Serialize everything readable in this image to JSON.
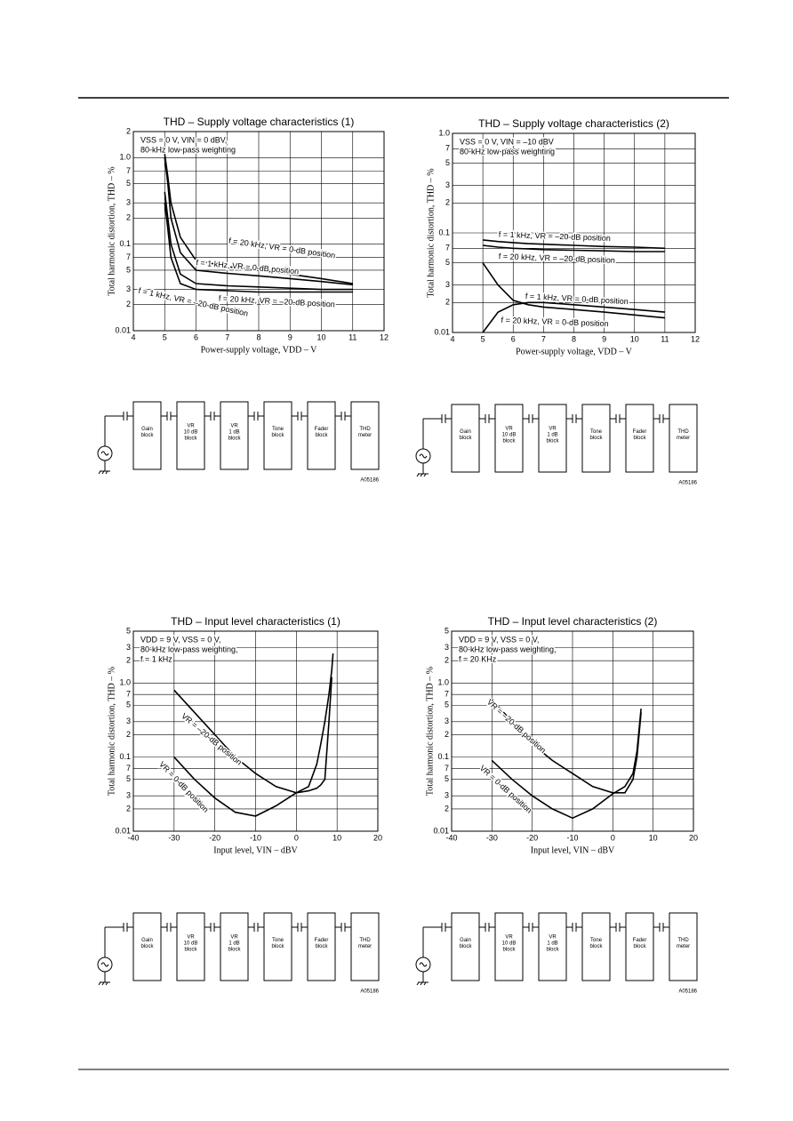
{
  "chart_data": [
    {
      "type": "line",
      "title": "THD – Supply voltage characteristics (1)",
      "x_label": "Power-supply voltage, VDD – V",
      "y_label": "Total harmonic distortion, THD – %",
      "annotation": [
        "VSS = 0 V, VIN = 0 dBV,",
        "80-kHz low-pass weighting"
      ],
      "log": true,
      "grid": true,
      "color": "#000000",
      "xlim": [
        4,
        12
      ],
      "xticks": [
        4,
        5,
        6,
        7,
        8,
        9,
        10,
        11,
        12
      ],
      "ylim": [
        0.01,
        2
      ],
      "yticks": [
        0.01,
        {
          "value": 0.02,
          "label": "2"
        },
        {
          "value": 0.03,
          "label": "3"
        },
        {
          "value": 0.05,
          "label": "5"
        },
        {
          "value": 0.07,
          "label": "7"
        },
        0.1,
        {
          "value": 0.2,
          "label": "2"
        },
        {
          "value": 0.3,
          "label": "3"
        },
        {
          "value": 0.5,
          "label": "5"
        },
        {
          "value": 0.7,
          "label": "7"
        },
        {
          "value": 1,
          "label": "1.0"
        },
        {
          "value": 2,
          "label": "2"
        }
      ],
      "x": [
        5,
        5.1,
        5.2,
        5.5,
        6,
        7,
        8,
        9,
        10,
        11
      ],
      "series": [
        {
          "name": "f = 20 kHz, VR = 0-dB position",
          "values": [
            1.1,
            0.6,
            0.3,
            0.12,
            0.065,
            0.055,
            0.05,
            0.045,
            0.04,
            0.035
          ]
        },
        {
          "name": "f = 1 kHz, VR = 0-dB position",
          "values": [
            1.0,
            0.5,
            0.2,
            0.08,
            0.05,
            0.046,
            0.043,
            0.04,
            0.037,
            0.034
          ]
        },
        {
          "name": "f = 20 kHz, VR = –20-dB position",
          "values": [
            0.4,
            0.2,
            0.1,
            0.045,
            0.035,
            0.033,
            0.032,
            0.031,
            0.03,
            0.03
          ]
        },
        {
          "name": "f = 1 kHz, VR = –20-dB position",
          "values": [
            0.3,
            0.15,
            0.07,
            0.035,
            0.03,
            0.029,
            0.028,
            0.028,
            0.028,
            0.028
          ]
        }
      ]
    },
    {
      "type": "line",
      "title": "THD – Supply voltage characteristics (2)",
      "x_label": "Power-supply voltage, VDD – V",
      "y_label": "Total harmonic distortion, THD – %",
      "annotation": [
        "VSS = 0 V, VIN = –10 dBV",
        "80-kHz low-pass weighting"
      ],
      "log": true,
      "grid": true,
      "color": "#000000",
      "xlim": [
        4,
        12
      ],
      "xticks": [
        4,
        5,
        6,
        7,
        8,
        9,
        10,
        11,
        12
      ],
      "ylim": [
        0.01,
        1
      ],
      "yticks": [
        0.01,
        {
          "value": 0.02,
          "label": "2"
        },
        {
          "value": 0.03,
          "label": "3"
        },
        {
          "value": 0.05,
          "label": "5"
        },
        {
          "value": 0.07,
          "label": "7"
        },
        0.1,
        {
          "value": 0.2,
          "label": "2"
        },
        {
          "value": 0.3,
          "label": "3"
        },
        {
          "value": 0.5,
          "label": "5"
        },
        {
          "value": 0.7,
          "label": "7"
        },
        {
          "value": 1,
          "label": "1.0"
        }
      ],
      "x": [
        5,
        5.5,
        6,
        6.5,
        7,
        8,
        9,
        10,
        11
      ],
      "series": [
        {
          "name": "f = 1 kHz, VR = –20-dB position",
          "values": [
            0.085,
            0.082,
            0.08,
            0.078,
            0.077,
            0.075,
            0.073,
            0.072,
            0.07
          ]
        },
        {
          "name": "f = 20 kHz, VR = –20-dB position",
          "values": [
            0.075,
            0.072,
            0.07,
            0.069,
            0.068,
            0.067,
            0.066,
            0.065,
            0.065
          ]
        },
        {
          "name": "f = 1 kHz, VR = 0-dB position",
          "values": [
            0.05,
            0.03,
            0.021,
            0.019,
            0.018,
            0.017,
            0.016,
            0.015,
            0.014
          ]
        },
        {
          "name": "f = 20 kHz, VR = 0-dB position",
          "values": [
            0.01,
            0.016,
            0.019,
            0.02,
            0.02,
            0.019,
            0.018,
            0.017,
            0.016
          ]
        }
      ]
    },
    {
      "type": "line",
      "title": "THD – Input level characteristics (1)",
      "x_label": "Input level, VIN – dBV",
      "y_label": "Total harmonic distortion, THD – %",
      "annotation": [
        "VDD = 9 V, VSS = 0 V,",
        "80-kHz low-pass weighting,",
        "f = 1 kHz"
      ],
      "log": true,
      "grid": true,
      "color": "#000000",
      "xlim": [
        -40,
        20
      ],
      "xticks": [
        -40,
        -30,
        -20,
        -10,
        0,
        10,
        20
      ],
      "ylim": [
        0.01,
        5
      ],
      "yticks": [
        0.01,
        {
          "value": 0.02,
          "label": "2"
        },
        {
          "value": 0.03,
          "label": "3"
        },
        {
          "value": 0.05,
          "label": "5"
        },
        {
          "value": 0.07,
          "label": "7"
        },
        0.1,
        {
          "value": 0.2,
          "label": "2"
        },
        {
          "value": 0.3,
          "label": "3"
        },
        {
          "value": 0.5,
          "label": "5"
        },
        {
          "value": 0.7,
          "label": "7"
        },
        {
          "value": 1,
          "label": "1.0"
        },
        {
          "value": 2,
          "label": "2"
        },
        {
          "value": 3,
          "label": "3"
        },
        {
          "value": 5,
          "label": "5"
        }
      ],
      "x": [
        -30,
        -25,
        -20,
        -15,
        -10,
        -5,
        0,
        3,
        5,
        6,
        7,
        8,
        8.7,
        9
      ],
      "series": [
        {
          "name": "VR = –20-dB position",
          "values": [
            0.8,
            0.4,
            0.2,
            0.1,
            0.06,
            0.04,
            0.033,
            0.04,
            0.08,
            0.15,
            0.3,
            0.7,
            1.5,
            2.5
          ]
        },
        {
          "name": "VR = 0-dB position",
          "values": [
            0.1,
            0.05,
            0.028,
            0.018,
            0.016,
            0.022,
            0.033,
            0.035,
            0.038,
            0.042,
            0.05,
            0.3,
            1.2,
            null
          ]
        }
      ]
    },
    {
      "type": "line",
      "title": "THD – Input level characteristics (2)",
      "x_label": "Input level, VIN – dBV",
      "y_label": "Total harmonic distortion, THD – %",
      "annotation": [
        "VDD = 9 V, VSS = 0 V,",
        "80-kHz low-pass weighting,",
        "f = 20 KHz"
      ],
      "log": true,
      "grid": true,
      "color": "#000000",
      "xlim": [
        -40,
        20
      ],
      "xticks": [
        -40,
        -30,
        -20,
        -10,
        0,
        10,
        20
      ],
      "ylim": [
        0.01,
        5
      ],
      "yticks": [
        0.01,
        {
          "value": 0.02,
          "label": "2"
        },
        {
          "value": 0.03,
          "label": "3"
        },
        {
          "value": 0.05,
          "label": "5"
        },
        {
          "value": 0.07,
          "label": "7"
        },
        0.1,
        {
          "value": 0.2,
          "label": "2"
        },
        {
          "value": 0.3,
          "label": "3"
        },
        {
          "value": 0.5,
          "label": "5"
        },
        {
          "value": 0.7,
          "label": "7"
        },
        {
          "value": 1,
          "label": "1.0"
        },
        {
          "value": 2,
          "label": "2"
        },
        {
          "value": 3,
          "label": "3"
        },
        {
          "value": 5,
          "label": "5"
        }
      ],
      "x": [
        -30,
        -25,
        -20,
        -15,
        -10,
        -5,
        0,
        3,
        5,
        6,
        7
      ],
      "series": [
        {
          "name": "VR = –20-dB position",
          "values": [
            0.6,
            0.3,
            0.15,
            0.09,
            0.06,
            0.04,
            0.033,
            0.033,
            0.05,
            0.1,
            0.4
          ]
        },
        {
          "name": "VR = 0-dB position",
          "values": [
            0.09,
            0.05,
            0.03,
            0.02,
            0.015,
            0.02,
            0.032,
            0.04,
            0.06,
            0.12,
            0.45
          ]
        }
      ]
    }
  ],
  "diagrams": [
    {
      "blocks": [
        [
          "Gain",
          "block"
        ],
        [
          "VR",
          "10 dB",
          "block"
        ],
        [
          "VR",
          "1 dB",
          "block"
        ],
        [
          "Tone",
          "block"
        ],
        [
          "Fader",
          "block"
        ],
        [
          "THD",
          "meter"
        ]
      ],
      "code": "A05186"
    },
    {
      "blocks": [
        [
          "Gain",
          "block"
        ],
        [
          "VR",
          "10 dB",
          "block"
        ],
        [
          "VR",
          "1 dB",
          "block"
        ],
        [
          "Tone",
          "block"
        ],
        [
          "Fader",
          "block"
        ],
        [
          "THD",
          "meter"
        ]
      ],
      "code": "A05186"
    },
    {
      "blocks": [
        [
          "Gain",
          "block"
        ],
        [
          "VR",
          "10 dB",
          "block"
        ],
        [
          "VR",
          "1 dB",
          "block"
        ],
        [
          "Tone",
          "block"
        ],
        [
          "Fader",
          "block"
        ],
        [
          "THD",
          "meter"
        ]
      ],
      "code": "A05186"
    },
    {
      "blocks": [
        [
          "Gain",
          "block"
        ],
        [
          "VR",
          "10 dB",
          "block"
        ],
        [
          "VR",
          "1 dB",
          "block"
        ],
        [
          "Tone",
          "block"
        ],
        [
          "Fader",
          "block"
        ],
        [
          "THD",
          "meter"
        ]
      ],
      "code": "A05186"
    }
  ]
}
